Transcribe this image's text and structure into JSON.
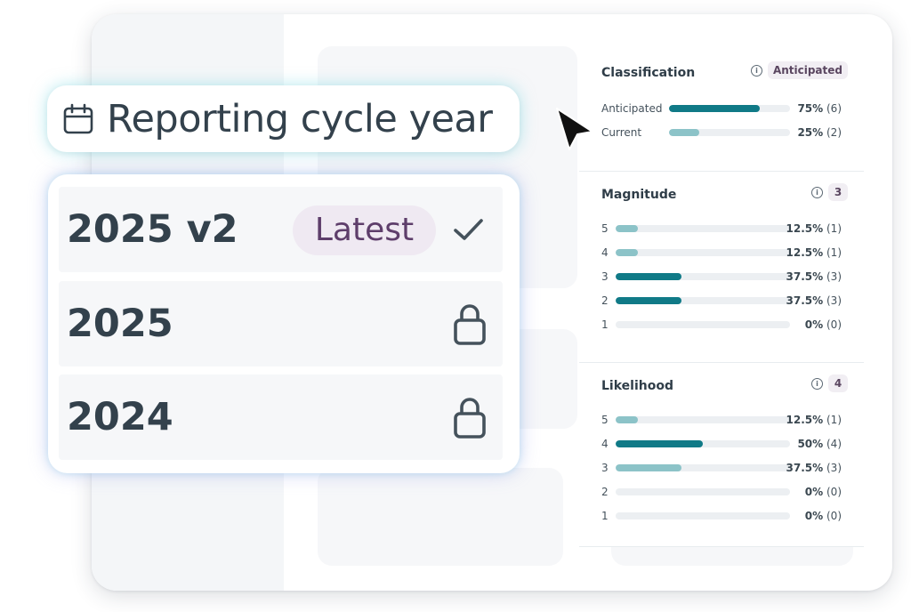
{
  "header": {
    "icon": "calendar-icon",
    "title": "Reporting cycle year"
  },
  "options": [
    {
      "label": "2025 v2",
      "badge": "Latest",
      "icon": "check-icon",
      "selected": true
    },
    {
      "label": "2025",
      "icon": "lock-icon",
      "locked": true
    },
    {
      "label": "2024",
      "icon": "lock-icon",
      "locked": true
    }
  ],
  "stats": {
    "classification": {
      "title": "Classification",
      "badge": "Anticipated",
      "rows": [
        {
          "label": "Anticipated",
          "percent": "75%",
          "count": "(6)",
          "fraction": 0.75
        },
        {
          "label": "Current",
          "percent": "25%",
          "count": "(2)",
          "fraction": 0.25
        }
      ]
    },
    "magnitude": {
      "title": "Magnitude",
      "badge": "3",
      "rows": [
        {
          "label": "5",
          "percent": "12.5%",
          "count": "(1)",
          "fraction": 0.125
        },
        {
          "label": "4",
          "percent": "12.5%",
          "count": "(1)",
          "fraction": 0.125
        },
        {
          "label": "3",
          "percent": "37.5%",
          "count": "(3)",
          "fraction": 0.375
        },
        {
          "label": "2",
          "percent": "37.5%",
          "count": "(3)",
          "fraction": 0.375
        },
        {
          "label": "1",
          "percent": "0%",
          "count": "(0)",
          "fraction": 0
        }
      ]
    },
    "likelihood": {
      "title": "Likelihood",
      "badge": "4",
      "rows": [
        {
          "label": "5",
          "percent": "12.5%",
          "count": "(1)",
          "fraction": 0.125
        },
        {
          "label": "4",
          "percent": "50%",
          "count": "(4)",
          "fraction": 0.5
        },
        {
          "label": "3",
          "percent": "37.5%",
          "count": "(3)",
          "fraction": 0.375
        },
        {
          "label": "2",
          "percent": "0%",
          "count": "(0)",
          "fraction": 0
        },
        {
          "label": "1",
          "percent": "0%",
          "count": "(0)",
          "fraction": 0
        }
      ]
    }
  },
  "colors": {
    "bar_strong": "#107a87",
    "bar_light": "#8cc3c8",
    "badge_text": "#5e3e6b",
    "badge_bg": "#efe9f2"
  }
}
